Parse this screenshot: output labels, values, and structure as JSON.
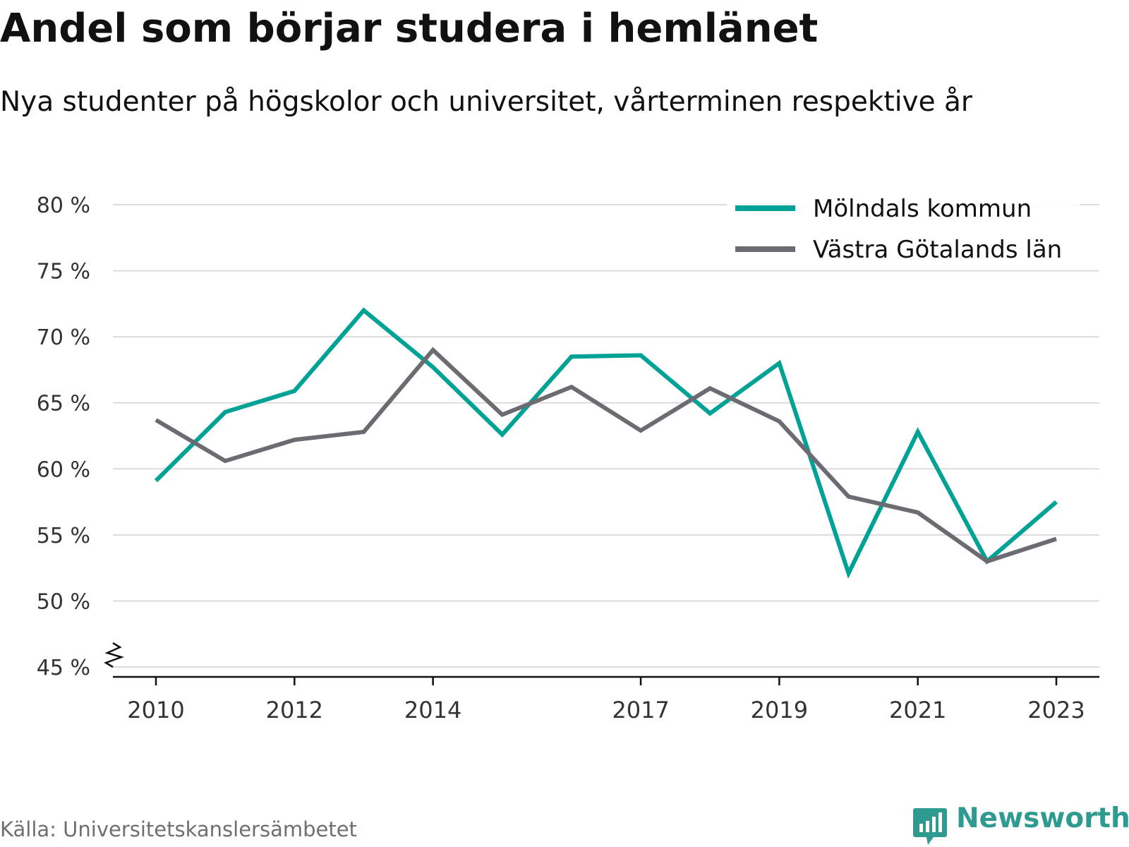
{
  "title": "Andel som börjar studera i hemlänet",
  "subtitle": "Nya studenter på högskolor och universitet, vårterminen respektive år",
  "source": "Källa: Universitetskanslersämbetet",
  "brand": {
    "name": "Newsworthy",
    "icon": "newsworthy-logo-icon",
    "color": "#2f9a8f"
  },
  "chart_data": {
    "type": "line",
    "x": [
      2010,
      2011,
      2012,
      2013,
      2014,
      2015,
      2016,
      2017,
      2018,
      2019,
      2020,
      2021,
      2022,
      2023
    ],
    "x_tick_labels": [
      "2010",
      "2012",
      "2014",
      "2017",
      "2019",
      "2021",
      "2023"
    ],
    "y_tick_labels": [
      "45 %",
      "50 %",
      "55 %",
      "60 %",
      "65 %",
      "70 %",
      "75 %",
      "80 %"
    ],
    "ylim": [
      45,
      80
    ],
    "y_axis_break": true,
    "grid": true,
    "legend_position": "top-right",
    "series": [
      {
        "name": "Mölndals kommun",
        "color": "#00a296",
        "values": [
          59.1,
          64.3,
          65.9,
          72.0,
          67.7,
          62.6,
          68.5,
          68.6,
          64.2,
          68.0,
          52.1,
          62.8,
          53.0,
          57.5
        ]
      },
      {
        "name": "Västra Götalands län",
        "color": "#6c6b72",
        "values": [
          63.7,
          60.6,
          62.2,
          62.8,
          69.0,
          64.1,
          66.2,
          62.9,
          66.1,
          63.6,
          57.9,
          56.7,
          53.0,
          54.7
        ]
      }
    ]
  }
}
